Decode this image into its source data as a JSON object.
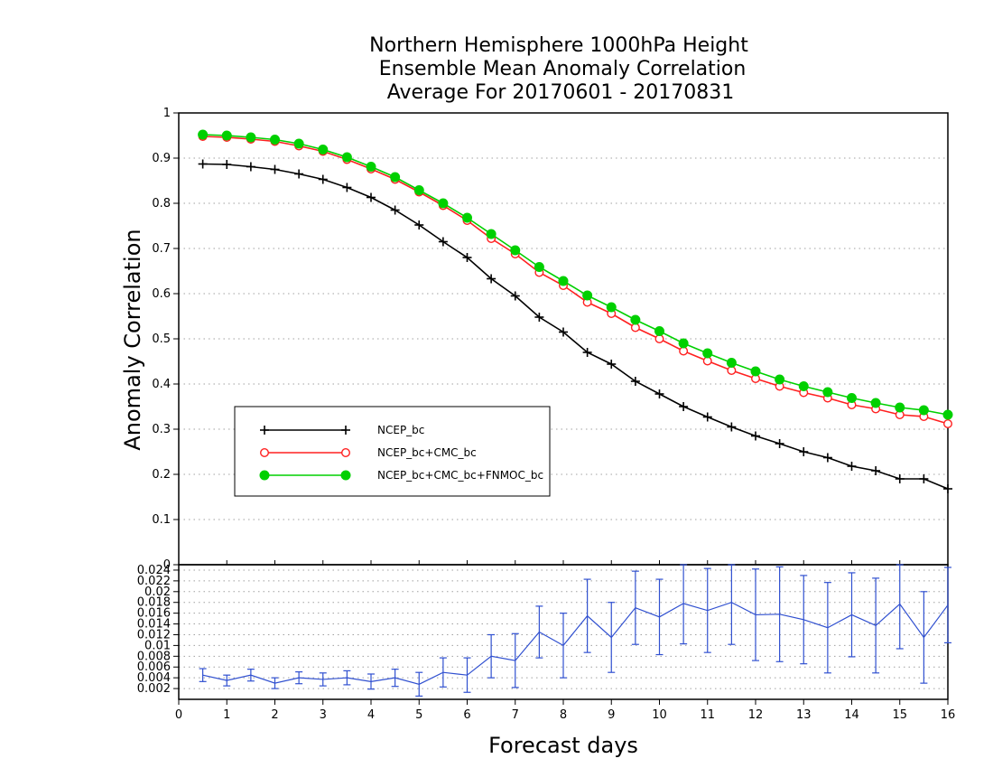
{
  "chart_data": [
    {
      "type": "line",
      "title_lines": [
        "Northern Hemisphere 1000hPa Height",
        "Ensemble Mean Anomaly Correlation",
        "Average For 20170601 - 20170831"
      ],
      "ylabel": "Anomaly Correlation",
      "ylim": [
        0,
        1
      ],
      "yticks": [
        "0",
        "0.1",
        "0.2",
        "0.3",
        "0.4",
        "0.5",
        "0.6",
        "0.7",
        "0.8",
        "0.9",
        "1"
      ],
      "grid": true,
      "legend_position": "left-middle",
      "x": [
        0.5,
        1,
        1.5,
        2,
        2.5,
        3,
        3.5,
        4,
        4.5,
        5,
        5.5,
        6,
        6.5,
        7,
        7.5,
        8,
        8.5,
        9,
        9.5,
        10,
        10.5,
        11,
        11.5,
        12,
        12.5,
        13,
        13.5,
        14,
        14.5,
        15,
        15.5,
        16
      ],
      "series": [
        {
          "name": "NCEP_bc",
          "color": "#000000",
          "marker": "plus",
          "values": [
            0.887,
            0.886,
            0.881,
            0.875,
            0.865,
            0.853,
            0.835,
            0.813,
            0.785,
            0.752,
            0.715,
            0.68,
            0.633,
            0.595,
            0.548,
            0.515,
            0.47,
            0.444,
            0.406,
            0.378,
            0.35,
            0.327,
            0.305,
            0.285,
            0.268,
            0.25,
            0.237,
            0.218,
            0.208,
            0.19,
            0.19,
            0.168
          ]
        },
        {
          "name": "NCEP_bc+CMC_bc",
          "color": "#ff2020",
          "marker": "open-circle",
          "values": [
            0.948,
            0.946,
            0.942,
            0.937,
            0.927,
            0.915,
            0.897,
            0.876,
            0.853,
            0.825,
            0.795,
            0.762,
            0.722,
            0.688,
            0.647,
            0.618,
            0.581,
            0.556,
            0.525,
            0.5,
            0.473,
            0.451,
            0.43,
            0.412,
            0.395,
            0.381,
            0.369,
            0.354,
            0.345,
            0.332,
            0.328,
            0.312
          ]
        },
        {
          "name": "NCEP_bc+CMC_bc+FNMOC_bc",
          "color": "#00d000",
          "marker": "filled-circle",
          "values": [
            0.952,
            0.95,
            0.946,
            0.941,
            0.932,
            0.919,
            0.902,
            0.881,
            0.858,
            0.829,
            0.8,
            0.768,
            0.732,
            0.696,
            0.659,
            0.628,
            0.596,
            0.57,
            0.542,
            0.517,
            0.49,
            0.468,
            0.447,
            0.428,
            0.41,
            0.395,
            0.382,
            0.369,
            0.358,
            0.348,
            0.342,
            0.332
          ]
        }
      ]
    },
    {
      "type": "line",
      "xlabel": "Forecast days",
      "ylim": [
        0,
        0.025
      ],
      "yticks": [
        "0.002",
        "0.004",
        "0.006",
        "0.008",
        "0.01",
        "0.012",
        "0.014",
        "0.016",
        "0.018",
        "0.02",
        "0.022",
        "0.024"
      ],
      "xlim": [
        0,
        16
      ],
      "xticks": [
        "0",
        "1",
        "2",
        "3",
        "4",
        "5",
        "6",
        "7",
        "8",
        "9",
        "10",
        "11",
        "12",
        "13",
        "14",
        "15",
        "16"
      ],
      "grid": true,
      "x": [
        0.5,
        1,
        1.5,
        2,
        2.5,
        3,
        3.5,
        4,
        4.5,
        5,
        5.5,
        6,
        6.5,
        7,
        7.5,
        8,
        8.5,
        9,
        9.5,
        10,
        10.5,
        11,
        11.5,
        12,
        12.5,
        13,
        13.5,
        14,
        14.5,
        15,
        15.5,
        16
      ],
      "series": [
        {
          "color": "#3050d0",
          "marker": "errorbar",
          "values": [
            0.0045,
            0.0035,
            0.0045,
            0.003,
            0.004,
            0.0037,
            0.004,
            0.0033,
            0.004,
            0.0028,
            0.005,
            0.0045,
            0.008,
            0.0072,
            0.0125,
            0.01,
            0.0155,
            0.0115,
            0.017,
            0.0153,
            0.0178,
            0.0165,
            0.018,
            0.0157,
            0.0158,
            0.0148,
            0.0133,
            0.0157,
            0.0137,
            0.0177,
            0.0115,
            0.0175
          ],
          "error": [
            0.0012,
            0.001,
            0.0011,
            0.001,
            0.0011,
            0.0012,
            0.0013,
            0.0014,
            0.0016,
            0.0022,
            0.0027,
            0.0032,
            0.004,
            0.005,
            0.0048,
            0.006,
            0.0068,
            0.0065,
            0.0068,
            0.007,
            0.0075,
            0.0078,
            0.0078,
            0.0085,
            0.0088,
            0.0082,
            0.0084,
            0.0078,
            0.0088,
            0.0083,
            0.0085,
            0.007
          ]
        }
      ]
    }
  ]
}
